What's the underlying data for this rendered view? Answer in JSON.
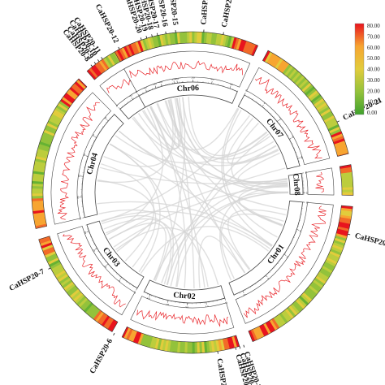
{
  "chromosomes": [
    {
      "name": "Chr01",
      "ticks": [
        "0",
        "10",
        "20",
        "30",
        "40"
      ]
    },
    {
      "name": "Chr02",
      "ticks": [
        "0",
        "10",
        "20",
        "30",
        "40"
      ]
    },
    {
      "name": "Chr03",
      "ticks": [
        "0",
        "10",
        "20",
        "30",
        "40"
      ]
    },
    {
      "name": "Chr04",
      "ticks": [
        "0",
        "10",
        "20",
        "30",
        "40",
        "50"
      ]
    },
    {
      "name": "Chr05",
      "ticks": [
        "0",
        "10",
        "20",
        "30",
        "40"
      ]
    },
    {
      "name": "Chr06",
      "ticks": [
        "0",
        "10",
        "20",
        "30",
        "40",
        "50"
      ]
    },
    {
      "name": "Chr07",
      "ticks": [
        "0",
        "10",
        "20",
        "30",
        "40"
      ]
    },
    {
      "name": "Chr08",
      "ticks": [
        "0",
        "10"
      ]
    }
  ],
  "genes": [
    {
      "label": "CaHSP20-1",
      "chr": "Chr01"
    },
    {
      "label": "CaHSP20-2",
      "chr": "Chr02"
    },
    {
      "label": "CaHSP20-3",
      "chr": "Chr02"
    },
    {
      "label": "CaHSP20-4",
      "chr": "Chr02"
    },
    {
      "label": "CaHSP20-5",
      "chr": "Chr02"
    },
    {
      "label": "CaHSP20-6",
      "chr": "Chr03"
    },
    {
      "label": "CaHSP20-7",
      "chr": "Chr04"
    },
    {
      "label": "CaHSP20-8",
      "chr": "Chr05"
    },
    {
      "label": "CaHSP20-9",
      "chr": "Chr05"
    },
    {
      "label": "CaHSP20-10",
      "chr": "Chr05"
    },
    {
      "label": "CaHSP20-11",
      "chr": "Chr05"
    },
    {
      "label": "CaHSP20-12",
      "chr": "Chr05"
    },
    {
      "label": "CaHSP20-13",
      "chr": "Chr06"
    },
    {
      "label": "CaHSP20-14",
      "chr": "Chr06"
    },
    {
      "label": "CaHSP20-15",
      "chr": "Chr06"
    },
    {
      "label": "CaHSP20-16",
      "chr": "Chr06"
    },
    {
      "label": "CaHSP20-17",
      "chr": "Chr06"
    },
    {
      "label": "CaHSP20-18",
      "chr": "Chr06"
    },
    {
      "label": "CaHSP20-19",
      "chr": "Chr06"
    },
    {
      "label": "CaHSP20-20",
      "chr": "Chr06"
    },
    {
      "label": "CaHSP20-21",
      "chr": "Chr07"
    }
  ],
  "legend": {
    "labels": [
      "80.00",
      "70.00",
      "60.00",
      "50.00",
      "40.00",
      "30.00",
      "20.00",
      "10.00",
      "0.00"
    ],
    "colors": [
      "#e8141e",
      "#f26a28",
      "#f7a531",
      "#e2cc3c",
      "#bccd3d",
      "#93c23b",
      "#66b233",
      "#3fa12d"
    ]
  },
  "colors": {
    "link": "#d4d4d4",
    "density_line": "#e8262b",
    "chromosome_fill": "#ffffff",
    "chromosome_stroke": "#444444"
  }
}
